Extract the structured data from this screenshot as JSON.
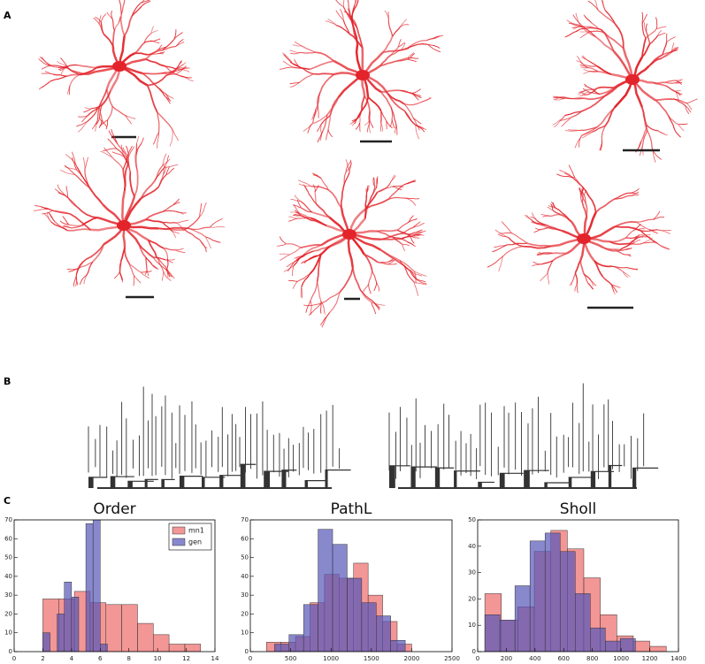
{
  "panel_labels": [
    "A",
    "B",
    "C"
  ],
  "chart_data": [
    {
      "type": "histogram",
      "title": "Order",
      "xlim": [
        0,
        14
      ],
      "xticks": [
        0,
        2,
        4,
        6,
        8,
        10,
        12,
        14
      ],
      "ylim": [
        0,
        70
      ],
      "yticks": [
        0,
        10,
        20,
        30,
        40,
        50,
        60,
        70
      ],
      "legend": "upper right",
      "series": [
        {
          "name": "mn1",
          "color": "#ee6a6a",
          "bins": [
            2,
            3.1,
            4.2,
            5.3,
            6.4,
            7.5,
            8.6,
            9.7,
            10.8,
            11.9,
            13
          ],
          "values": [
            28,
            28,
            32,
            26,
            25,
            25,
            15,
            9,
            4,
            4
          ]
        },
        {
          "name": "gen",
          "color": "#5555b8",
          "bins": [
            2,
            2.5,
            3,
            3.5,
            4,
            4.5,
            5,
            5.5,
            6,
            6.5,
            7
          ],
          "values": [
            10,
            0,
            20,
            37,
            29,
            0,
            68,
            72,
            4,
            0
          ]
        }
      ]
    },
    {
      "type": "histogram",
      "title": "PathL",
      "xlim": [
        0,
        2500
      ],
      "xticks": [
        0,
        500,
        1000,
        1500,
        2000,
        2500
      ],
      "ylim": [
        0,
        70
      ],
      "yticks": [
        0,
        10,
        20,
        30,
        40,
        50,
        60,
        70
      ],
      "series": [
        {
          "name": "mn1",
          "color": "#ee6a6a",
          "bins": [
            200,
            380,
            560,
            740,
            920,
            1100,
            1280,
            1460,
            1640,
            1820,
            2000
          ],
          "values": [
            5,
            5,
            8,
            26,
            41,
            39,
            47,
            30,
            16,
            4
          ]
        },
        {
          "name": "gen",
          "color": "#5555b8",
          "bins": [
            300,
            480,
            660,
            840,
            1020,
            1200,
            1380,
            1560,
            1740,
            1920
          ],
          "values": [
            4,
            9,
            25,
            65,
            57,
            39,
            26,
            19,
            6
          ]
        }
      ]
    },
    {
      "type": "histogram",
      "title": "Sholl",
      "xlim": [
        0,
        1400
      ],
      "xticks": [
        0,
        200,
        400,
        600,
        800,
        1000,
        1200,
        1400
      ],
      "ylim": [
        0,
        50
      ],
      "yticks": [
        0,
        10,
        20,
        30,
        40,
        50
      ],
      "series": [
        {
          "name": "mn1",
          "color": "#ee6a6a",
          "bins": [
            50,
            165,
            280,
            395,
            510,
            625,
            740,
            855,
            970,
            1085,
            1200,
            1315
          ],
          "values": [
            22,
            12,
            17,
            38,
            46,
            39,
            28,
            14,
            6,
            4,
            2
          ]
        },
        {
          "name": "gen",
          "color": "#5555b8",
          "bins": [
            50,
            155,
            260,
            365,
            470,
            575,
            680,
            785,
            890,
            995,
            1100
          ],
          "values": [
            14,
            12,
            25,
            42,
            45,
            38,
            22,
            9,
            4,
            5
          ]
        }
      ]
    }
  ]
}
